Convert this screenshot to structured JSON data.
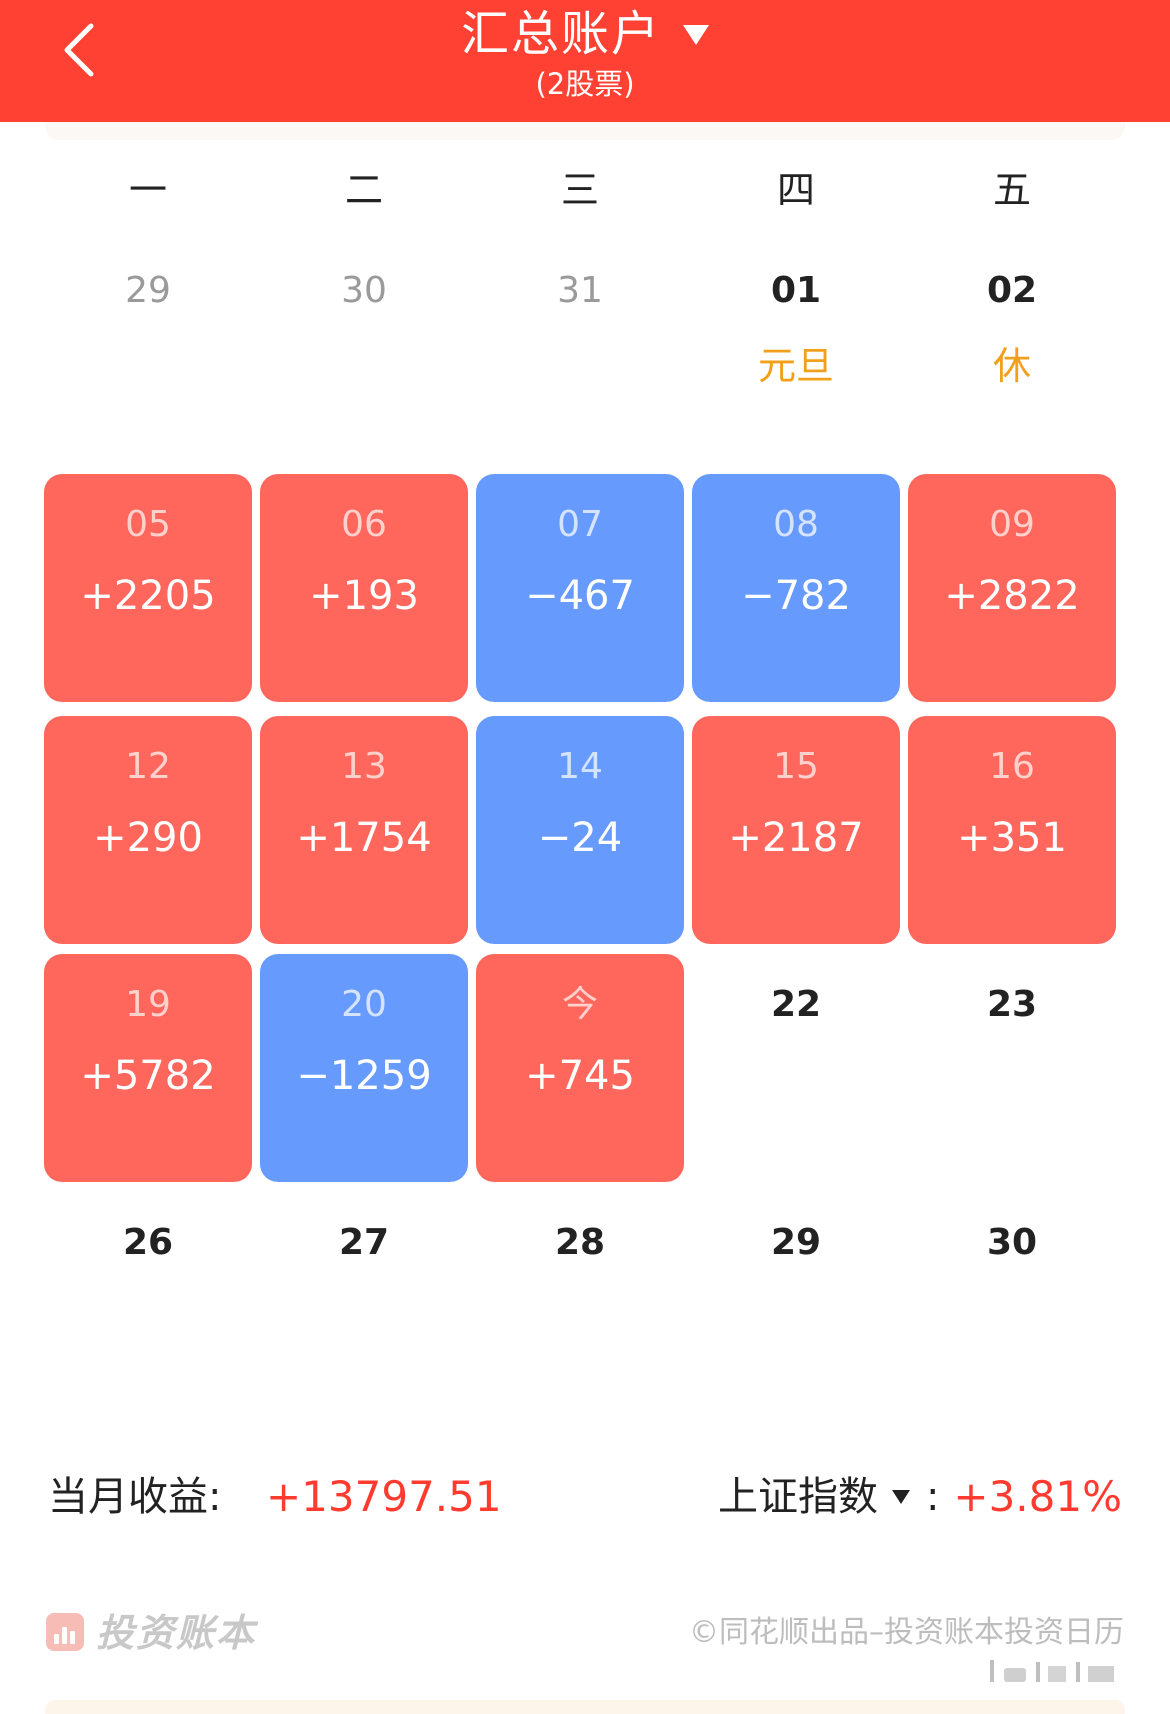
{
  "header": {
    "title": "汇总账户",
    "subtitle": "(2股票)",
    "back_icon": "chevron-left-icon",
    "caret_icon": "caret-down-icon"
  },
  "weekdays": [
    "一",
    "二",
    "三",
    "四",
    "五"
  ],
  "days": [
    {
      "day": "29",
      "pnl": "",
      "note": "",
      "state": "muted"
    },
    {
      "day": "30",
      "pnl": "",
      "note": "",
      "state": "muted"
    },
    {
      "day": "31",
      "pnl": "",
      "note": "",
      "state": "muted"
    },
    {
      "day": "01",
      "pnl": "",
      "note": "元旦",
      "state": "plain"
    },
    {
      "day": "02",
      "pnl": "",
      "note": "休",
      "state": "plain"
    },
    {
      "day": "05",
      "pnl": "+2205",
      "note": "",
      "state": "up"
    },
    {
      "day": "06",
      "pnl": "+193",
      "note": "",
      "state": "up"
    },
    {
      "day": "07",
      "pnl": "−467",
      "note": "",
      "state": "down"
    },
    {
      "day": "08",
      "pnl": "−782",
      "note": "",
      "state": "down"
    },
    {
      "day": "09",
      "pnl": "+2822",
      "note": "",
      "state": "up"
    },
    {
      "day": "12",
      "pnl": "+290",
      "note": "",
      "state": "up"
    },
    {
      "day": "13",
      "pnl": "+1754",
      "note": "",
      "state": "up"
    },
    {
      "day": "14",
      "pnl": "−24",
      "note": "",
      "state": "down"
    },
    {
      "day": "15",
      "pnl": "+2187",
      "note": "",
      "state": "up"
    },
    {
      "day": "16",
      "pnl": "+351",
      "note": "",
      "state": "up"
    },
    {
      "day": "19",
      "pnl": "+5782",
      "note": "",
      "state": "up"
    },
    {
      "day": "20",
      "pnl": "−1259",
      "note": "",
      "state": "down"
    },
    {
      "day": "今",
      "pnl": "+745",
      "note": "",
      "state": "up"
    },
    {
      "day": "22",
      "pnl": "",
      "note": "",
      "state": "plain"
    },
    {
      "day": "23",
      "pnl": "",
      "note": "",
      "state": "plain"
    },
    {
      "day": "26",
      "pnl": "",
      "note": "",
      "state": "plain"
    },
    {
      "day": "27",
      "pnl": "",
      "note": "",
      "state": "plain"
    },
    {
      "day": "28",
      "pnl": "",
      "note": "",
      "state": "plain"
    },
    {
      "day": "29",
      "pnl": "",
      "note": "",
      "state": "plain"
    },
    {
      "day": "30",
      "pnl": "",
      "note": "",
      "state": "plain"
    }
  ],
  "summary": {
    "month_label": "当月收益:",
    "month_value": "+13797.51",
    "index_label": "上证指数",
    "index_colon": ":",
    "index_value": "+3.81%"
  },
  "footer": {
    "brand": "投资账本",
    "copyright": "©同花顺出品–投资账本投资日历"
  },
  "colors": {
    "header": "#ff4133",
    "gain_cell": "#ff665c",
    "loss_cell": "#679afd",
    "gain_text": "#ff3b30",
    "holiday_text": "#f0a01a"
  }
}
